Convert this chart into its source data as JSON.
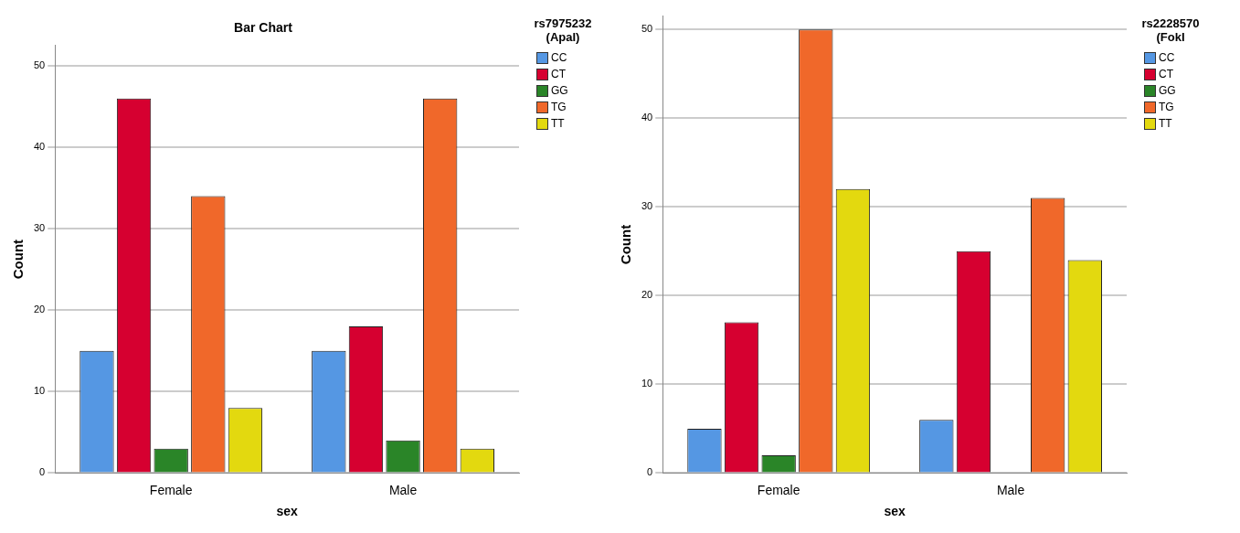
{
  "chart_data": [
    {
      "type": "bar",
      "title": "Bar Chart",
      "xlabel": "sex",
      "ylabel": "Count",
      "legend_title": "rs7975232 (ApaI)",
      "categories": [
        "Female",
        "Male"
      ],
      "ylim": [
        0,
        52.5
      ],
      "yticks": [
        0,
        10,
        20,
        30,
        40,
        50
      ],
      "grid": "y",
      "legend": "right",
      "series": [
        {
          "name": "CC",
          "color": "#5597e3",
          "values": [
            15,
            15
          ]
        },
        {
          "name": "CT",
          "color": "#d60030",
          "values": [
            46,
            18
          ]
        },
        {
          "name": "GG",
          "color": "#2a8528",
          "values": [
            3,
            4
          ]
        },
        {
          "name": "TG",
          "color": "#f0682a",
          "values": [
            34,
            46
          ]
        },
        {
          "name": "TT",
          "color": "#e3d90f",
          "values": [
            8,
            3
          ]
        }
      ]
    },
    {
      "type": "bar",
      "xlabel": "sex",
      "ylabel": "Count",
      "legend_title": "rs2228570 (FokI",
      "categories": [
        "Female",
        "Male"
      ],
      "ylim": [
        0,
        51.5
      ],
      "yticks": [
        0,
        10,
        20,
        30,
        40,
        50
      ],
      "grid": "y",
      "legend": "right",
      "series": [
        {
          "name": "CC",
          "color": "#5597e3",
          "values": [
            5,
            6
          ]
        },
        {
          "name": "CT",
          "color": "#d60030",
          "values": [
            17,
            25
          ]
        },
        {
          "name": "GG",
          "color": "#2a8528",
          "values": [
            2,
            null
          ]
        },
        {
          "name": "TG",
          "color": "#f0682a",
          "values": [
            50,
            31
          ]
        },
        {
          "name": "TT",
          "color": "#e3d90f",
          "values": [
            32,
            24
          ]
        }
      ]
    }
  ]
}
